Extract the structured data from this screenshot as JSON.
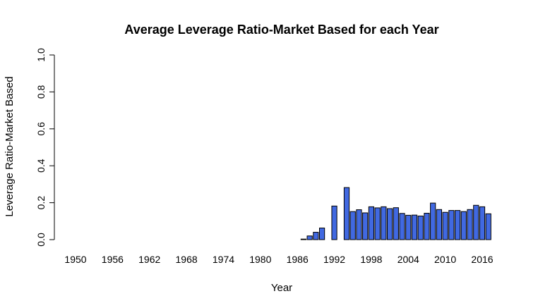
{
  "chart_data": {
    "type": "bar",
    "title": "Average Leverage Ratio-Market Based for each Year",
    "xlabel": "Year",
    "ylabel": "Leverage Ratio-Market Based",
    "ylim": [
      0,
      1
    ],
    "yticks": [
      "0.0",
      "0.2",
      "0.4",
      "0.6",
      "0.8",
      "1.0"
    ],
    "xtick_labels": [
      "1950",
      "1956",
      "1962",
      "1968",
      "1974",
      "1980",
      "1986",
      "1992",
      "1998",
      "2004",
      "2010",
      "2016"
    ],
    "categories": [
      1950,
      1951,
      1952,
      1953,
      1954,
      1955,
      1956,
      1957,
      1958,
      1959,
      1960,
      1961,
      1962,
      1963,
      1964,
      1965,
      1966,
      1967,
      1968,
      1969,
      1970,
      1971,
      1972,
      1973,
      1974,
      1975,
      1976,
      1977,
      1978,
      1979,
      1980,
      1981,
      1982,
      1983,
      1984,
      1985,
      1986,
      1987,
      1988,
      1989,
      1990,
      1991,
      1992,
      1993,
      1994,
      1995,
      1996,
      1997,
      1998,
      1999,
      2000,
      2001,
      2002,
      2003,
      2004,
      2005,
      2006,
      2007,
      2008,
      2009,
      2010,
      2011,
      2012,
      2013,
      2014,
      2015,
      2016,
      2017
    ],
    "values": [
      0,
      0,
      0,
      0,
      0,
      0,
      0,
      0,
      0,
      0,
      0,
      0,
      0,
      0,
      0,
      0,
      0,
      0,
      0,
      0,
      0,
      0,
      0,
      0,
      0,
      0,
      0,
      0,
      0,
      0,
      0,
      0,
      0,
      0,
      0,
      0,
      0,
      0.003,
      0.02,
      0.04,
      0.063,
      0,
      0.182,
      0,
      0.282,
      0.152,
      0.162,
      0.145,
      0.178,
      0.172,
      0.178,
      0.168,
      0.173,
      0.142,
      0.132,
      0.133,
      0.128,
      0.143,
      0.198,
      0.163,
      0.148,
      0.158,
      0.158,
      0.152,
      0.163,
      0.186,
      0.178,
      0.14
    ],
    "bar_color": "#4169E1",
    "grid": false,
    "legend": "none"
  }
}
